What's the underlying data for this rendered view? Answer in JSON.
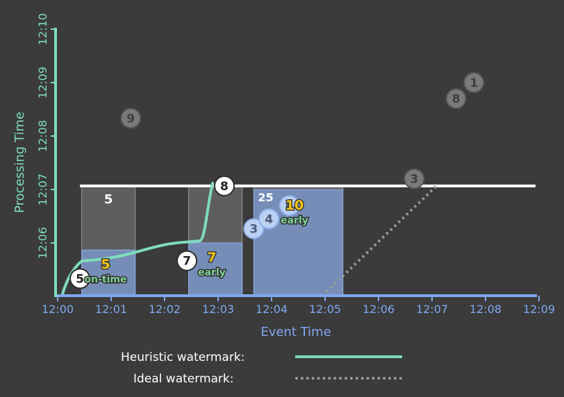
{
  "axes": {
    "x_label": "Event Time",
    "y_label": "Processing Time",
    "x_ticks": [
      "12:00",
      "12:01",
      "12:02",
      "12:03",
      "12:04",
      "12:05",
      "12:06",
      "12:07",
      "12:08",
      "12:09"
    ],
    "y_ticks": [
      "12:06",
      "12:07",
      "12:08",
      "12:09",
      "12:10"
    ],
    "x_color": "#7fa8f0",
    "y_color": "#7fdcbc"
  },
  "windows": [
    {
      "id": "w1",
      "event_start": "12:00:27",
      "event_end": "12:01:27",
      "top": "12:07:04",
      "sum": "5",
      "pane_top": "12:05:52",
      "pane_label": "5",
      "pane_tag": "on-time"
    },
    {
      "id": "w2",
      "event_start": "12:02:27",
      "event_end": "12:03:27",
      "top": "12:07:04",
      "sum": "",
      "pane_top": "12:06:00",
      "pane_label": "7",
      "pane_tag": "early"
    },
    {
      "id": "w3",
      "event_start": "12:03:40",
      "event_end": "12:05:20",
      "top": "12:07:04",
      "sum": "",
      "pane_top": "12:07:00",
      "pane_label": "10",
      "pane_tag": "early",
      "pane_header": "25"
    }
  ],
  "points": [
    {
      "id": "p5",
      "value": "5",
      "style": "white",
      "event": "12:00:25",
      "proc": "12:05:20"
    },
    {
      "id": "p9",
      "value": "9",
      "style": "gray",
      "event": "12:01:22",
      "proc": "12:08:20"
    },
    {
      "id": "p7",
      "value": "7",
      "style": "white",
      "event": "12:02:25",
      "proc": "12:05:40"
    },
    {
      "id": "p8a",
      "value": "8",
      "style": "white",
      "event": "12:03:07",
      "proc": "12:07:04"
    },
    {
      "id": "p3a",
      "value": "3",
      "style": "blue",
      "event": "12:03:40",
      "proc": "12:06:16"
    },
    {
      "id": "p4",
      "value": "4",
      "style": "blue",
      "event": "12:03:57",
      "proc": "12:06:27"
    },
    {
      "id": "p6",
      "value": "6",
      "style": "blue",
      "event": "12:04:20",
      "proc": "12:06:42"
    },
    {
      "id": "p3b",
      "value": "3",
      "style": "gray",
      "event": "12:06:40",
      "proc": "12:07:12"
    },
    {
      "id": "p8b",
      "value": "8",
      "style": "gray",
      "event": "12:07:27",
      "proc": "12:08:42"
    },
    {
      "id": "p1",
      "value": "1",
      "style": "gray",
      "event": "12:07:47",
      "proc": "12:09:00"
    }
  ],
  "trigger_line": {
    "proc": "12:07:04"
  },
  "legend": {
    "heuristic_label": "Heuristic watermark:",
    "ideal_label": "Ideal watermark:",
    "heuristic_color": "#7fdcbc",
    "ideal_color": "#9a9a9a"
  },
  "colors": {
    "background": "#3b3b3b",
    "pane_fill": "#7f9fd6",
    "window_fill": "#8a8a8a",
    "early_label": "#f5c518",
    "tag_bg": "#7fcf97",
    "trigger": "#ffffff"
  }
}
